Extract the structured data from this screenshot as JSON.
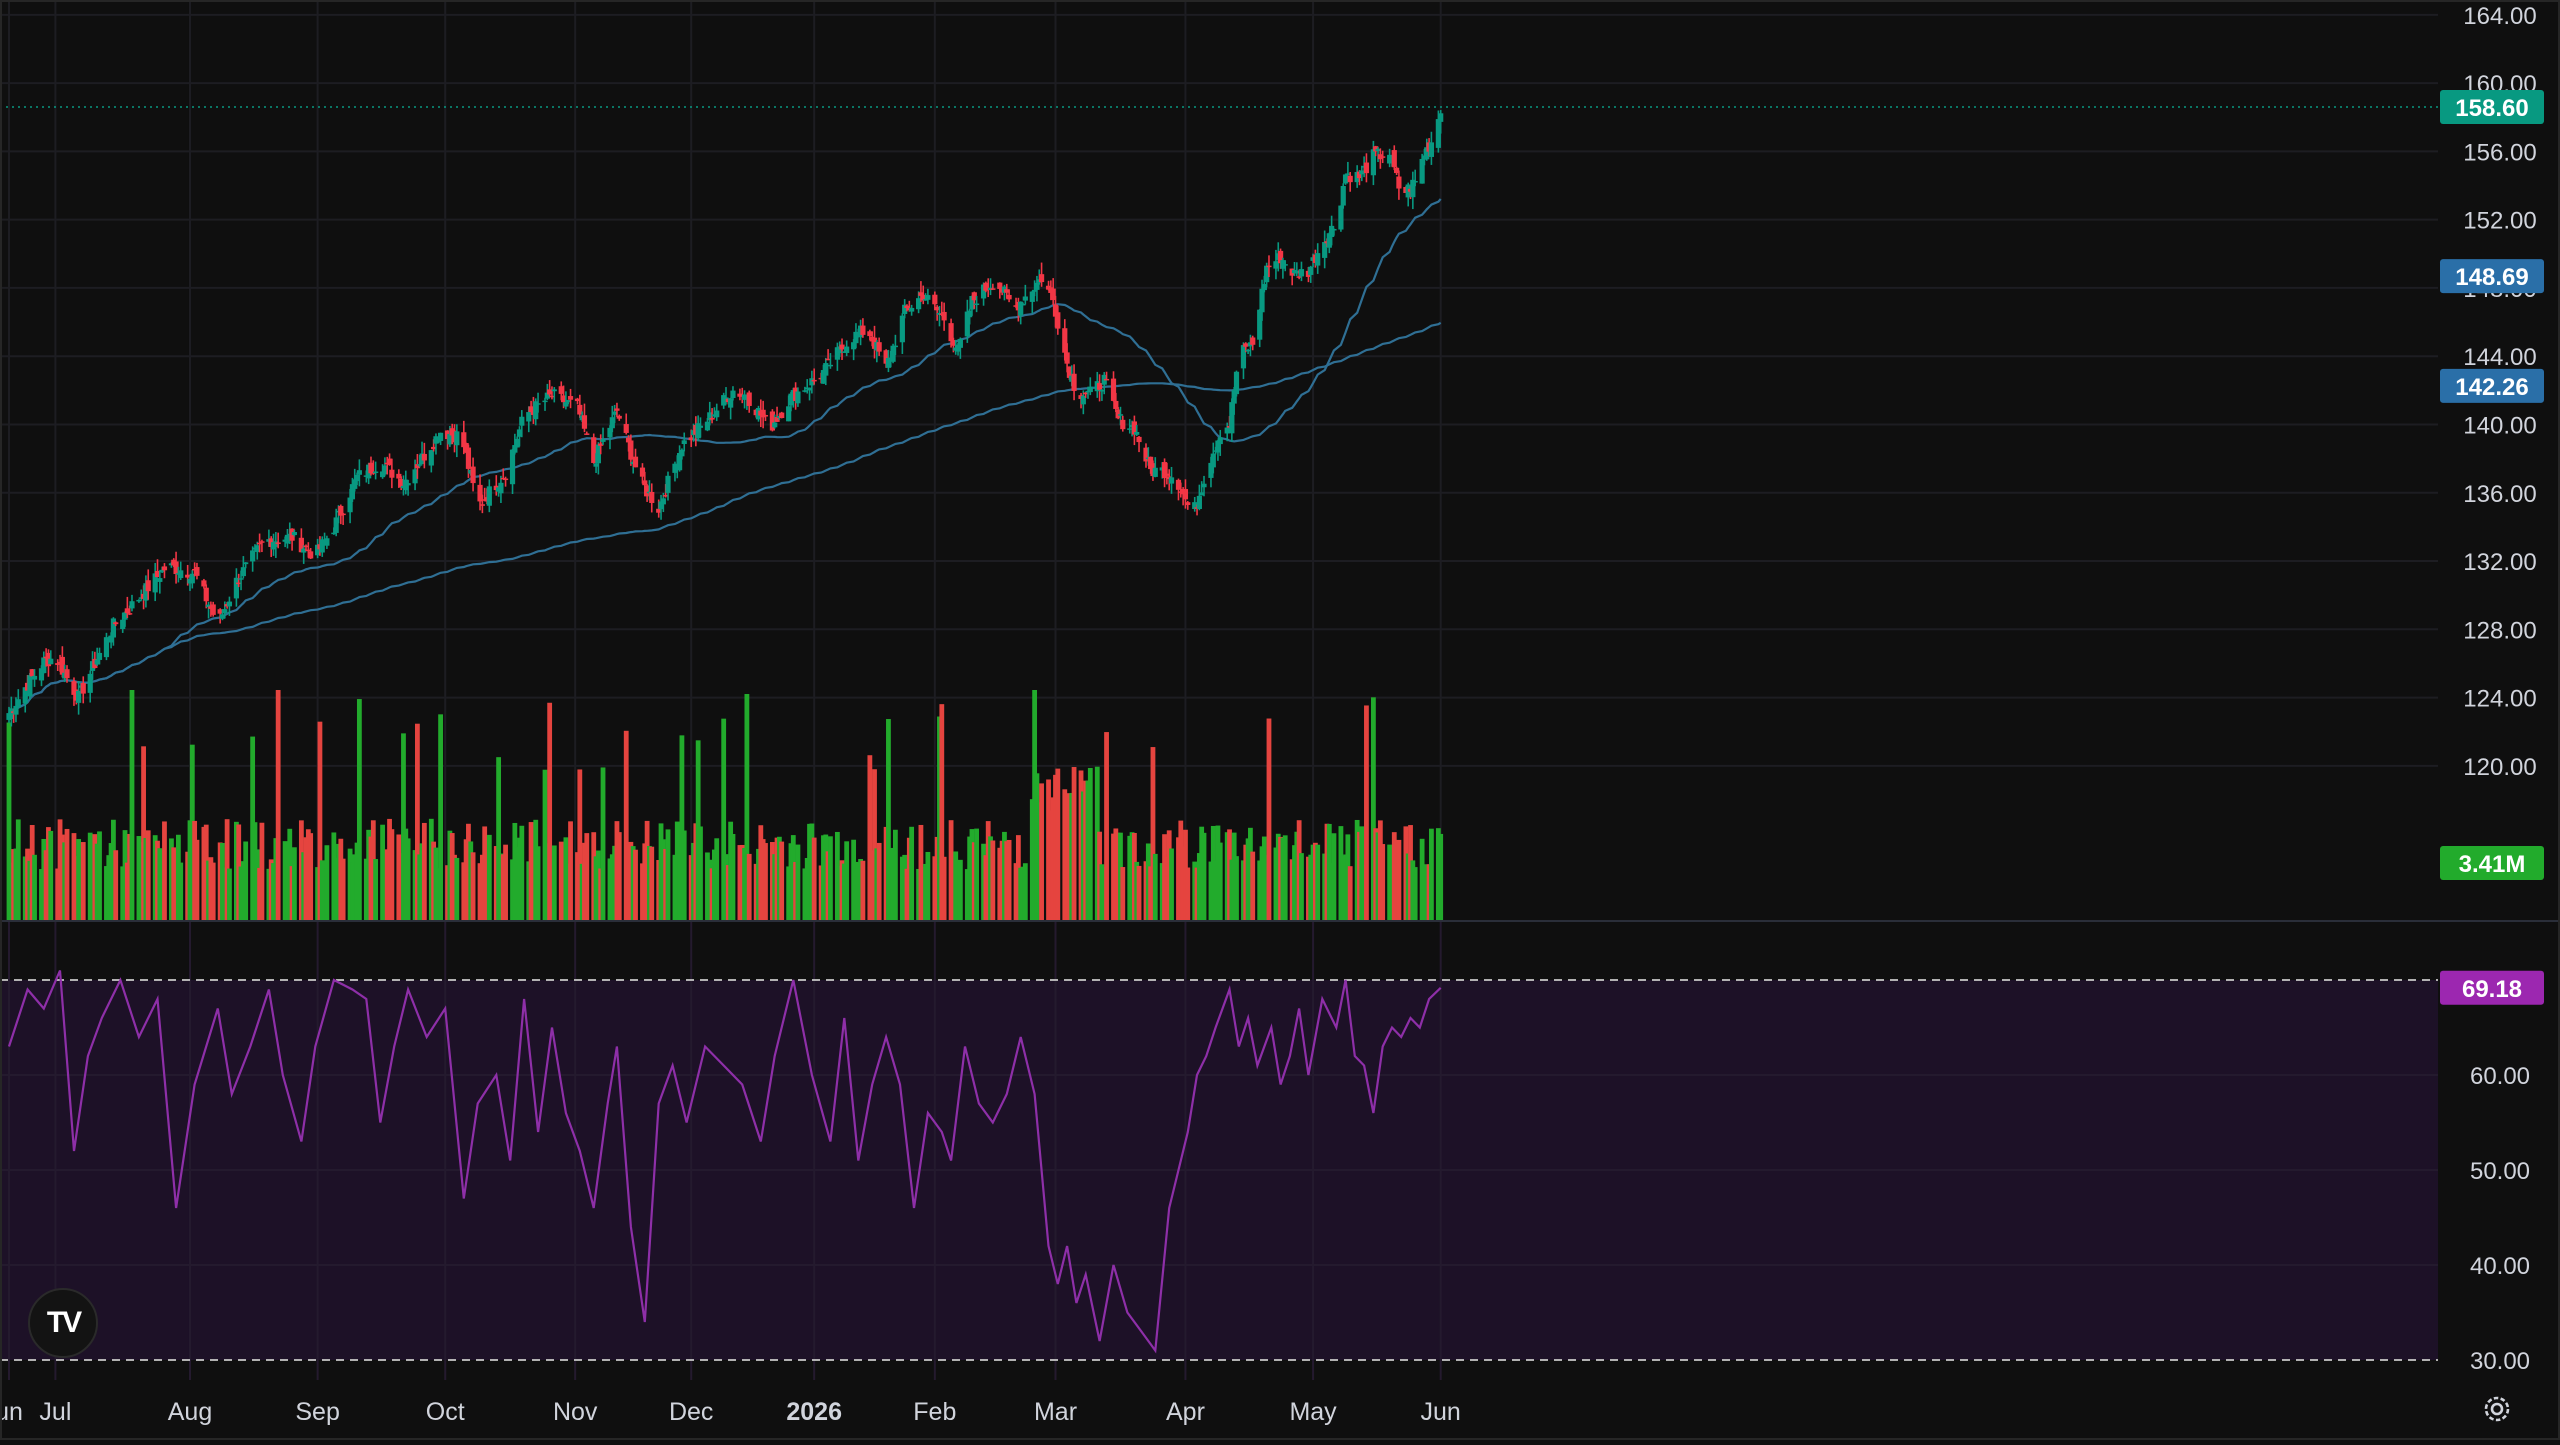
{
  "chart_data": {
    "type": "candlestick",
    "x_axis": {
      "labels": [
        "un",
        "Jul",
        "Aug",
        "Sep",
        "Oct",
        "Nov",
        "Dec",
        "2026",
        "Feb",
        "Mar",
        "Apr",
        "May",
        "Jun"
      ],
      "label_days": [
        0,
        20,
        78,
        133,
        188,
        244,
        294,
        347,
        399,
        451,
        507,
        562,
        617
      ],
      "start_date": "2025-06-01",
      "end_date": "2026-06-01"
    },
    "price_axis": {
      "ticks": [
        "164.00",
        "160.00",
        "156.00",
        "152.00",
        "148.00",
        "144.00",
        "140.00",
        "136.00",
        "132.00",
        "128.00",
        "124.00",
        "120.00"
      ],
      "range": [
        118.0,
        164.4
      ]
    },
    "rsi_axis": {
      "ticks": [
        "60.00",
        "50.00",
        "40.00",
        "30.00"
      ],
      "range": [
        28.0,
        72.0
      ],
      "upper_band": 70,
      "lower_band": 30
    },
    "price_tags": [
      {
        "name": "last",
        "value": "158.60",
        "color": "#089981"
      },
      {
        "name": "ma50",
        "value": "148.69",
        "color": "#2a6fa8"
      },
      {
        "name": "ma200",
        "value": "142.26",
        "color": "#2a6fa8"
      }
    ],
    "volume_tag": {
      "value": "3.41M",
      "color": "#22ab2c"
    },
    "rsi_tag": {
      "value": "69.18",
      "color": "#9c27b0"
    },
    "anchors": [
      [
        0,
        123.1
      ],
      [
        7,
        124.6
      ],
      [
        15,
        126.1
      ],
      [
        20,
        126.4
      ],
      [
        26,
        124.9
      ],
      [
        30,
        124.0
      ],
      [
        38,
        126.3
      ],
      [
        45,
        128.2
      ],
      [
        55,
        129.7
      ],
      [
        68,
        131.7
      ],
      [
        80,
        131.3
      ],
      [
        90,
        128.3
      ],
      [
        98,
        130.8
      ],
      [
        110,
        133.2
      ],
      [
        122,
        133.4
      ],
      [
        132,
        132.3
      ],
      [
        140,
        134.0
      ],
      [
        150,
        136.9
      ],
      [
        160,
        137.8
      ],
      [
        170,
        136.6
      ],
      [
        180,
        138.4
      ],
      [
        186,
        139.6
      ],
      [
        195,
        139.3
      ],
      [
        202,
        135.2
      ],
      [
        214,
        137.2
      ],
      [
        222,
        140.5
      ],
      [
        234,
        141.7
      ],
      [
        245,
        141.0
      ],
      [
        252,
        137.8
      ],
      [
        262,
        140.8
      ],
      [
        272,
        136.7
      ],
      [
        280,
        135.1
      ],
      [
        290,
        138.8
      ],
      [
        300,
        140.1
      ],
      [
        312,
        142.0
      ],
      [
        318,
        141.7
      ],
      [
        328,
        139.8
      ],
      [
        337,
        141.6
      ],
      [
        350,
        142.9
      ],
      [
        362,
        145.0
      ],
      [
        370,
        145.6
      ],
      [
        378,
        143.3
      ],
      [
        386,
        146.6
      ],
      [
        394,
        147.6
      ],
      [
        403,
        146.2
      ],
      [
        409,
        144.3
      ],
      [
        415,
        147.2
      ],
      [
        425,
        148.5
      ],
      [
        433,
        146.8
      ],
      [
        440,
        147.8
      ],
      [
        445,
        148.6
      ],
      [
        450,
        147.3
      ],
      [
        456,
        143.6
      ],
      [
        460,
        141.9
      ],
      [
        466,
        141.8
      ],
      [
        472,
        142.6
      ],
      [
        478,
        140.3
      ],
      [
        485,
        139.8
      ],
      [
        492,
        137.3
      ],
      [
        498,
        137.3
      ],
      [
        503,
        136.9
      ],
      [
        510,
        134.6
      ],
      [
        516,
        137.3
      ],
      [
        522,
        139.6
      ],
      [
        526,
        140.0
      ],
      [
        530,
        144.1
      ],
      [
        536,
        144.7
      ],
      [
        542,
        149.2
      ],
      [
        548,
        149.8
      ],
      [
        554,
        148.8
      ],
      [
        560,
        149.0
      ],
      [
        566,
        150.7
      ],
      [
        572,
        151.8
      ],
      [
        576,
        154.7
      ],
      [
        582,
        154.5
      ],
      [
        588,
        155.7
      ],
      [
        595,
        155.9
      ],
      [
        600,
        153.4
      ],
      [
        606,
        154.2
      ],
      [
        610,
        155.9
      ],
      [
        614,
        156.8
      ],
      [
        617,
        158.6
      ]
    ],
    "rsi": {
      "days": [
        0,
        8,
        15,
        22,
        28,
        34,
        40,
        48,
        56,
        64,
        72,
        80,
        90,
        96,
        104,
        112,
        118,
        126,
        132,
        140,
        148,
        154,
        160,
        166,
        172,
        180,
        188,
        196,
        202,
        210,
        216,
        222,
        228,
        234,
        240,
        246,
        252,
        258,
        262,
        268,
        274,
        280,
        286,
        292,
        300,
        308,
        316,
        324,
        330,
        338,
        346,
        354,
        360,
        366,
        372,
        378,
        384,
        390,
        396,
        402,
        406,
        412,
        418,
        424,
        430,
        436,
        442,
        448,
        452,
        456,
        460,
        464,
        470,
        476,
        482,
        488,
        494,
        500,
        504,
        508,
        512,
        516,
        520,
        526,
        530,
        534,
        538,
        544,
        548,
        552,
        556,
        560,
        566,
        572,
        576,
        580,
        584,
        588,
        592,
        596,
        600,
        604,
        608,
        612,
        617
      ],
      "values": [
        63,
        69,
        67,
        71,
        52,
        62,
        66,
        70,
        64,
        68,
        46,
        59,
        67,
        58,
        63,
        69,
        60,
        53,
        63,
        70,
        69,
        68,
        55,
        63,
        69,
        64,
        67,
        47,
        57,
        60,
        51,
        68,
        54,
        65,
        56,
        52,
        46,
        57,
        63,
        44,
        34,
        57,
        61,
        55,
        63,
        61,
        59,
        53,
        62,
        70,
        60,
        53,
        66,
        51,
        59,
        64,
        59,
        46,
        56,
        54,
        51,
        63,
        57,
        55,
        58,
        64,
        58,
        42,
        38,
        42,
        36,
        39,
        32,
        40,
        35,
        33,
        31,
        46,
        50,
        54,
        60,
        62,
        65,
        69,
        63,
        66,
        61,
        65,
        59,
        62,
        67,
        60,
        68,
        65,
        70,
        62,
        61,
        56,
        63,
        65,
        64,
        66,
        65,
        68,
        69.18
      ]
    },
    "legend": "none",
    "grid": true
  }
}
